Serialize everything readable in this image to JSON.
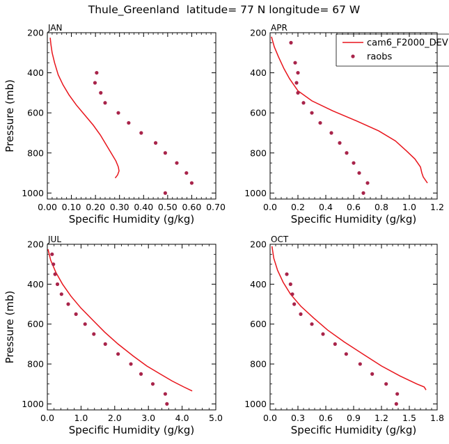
{
  "title": "Thule_Greenland  latitude= 77 N longitude= 67 W",
  "legend": {
    "model_label": "cam6_F2000_DEV",
    "obs_label": "raobs"
  },
  "colors": {
    "model": "#e8141b",
    "obs": "#a8244a",
    "axis": "#000000"
  },
  "chart_data": [
    {
      "type": "line",
      "panel": "JAN",
      "xlabel": "Specific Humidity (g/kg)",
      "ylabel": "Pressure (mb)",
      "xlim": [
        0,
        0.7
      ],
      "ylim": [
        200,
        1030
      ],
      "xticks": [
        0.0,
        0.1,
        0.2,
        0.3,
        0.4,
        0.5,
        0.6,
        0.7
      ],
      "xtick_labels": [
        "0.00",
        "0.10",
        "0.20",
        "0.30",
        "0.40",
        "0.50",
        "0.60",
        "0.70"
      ],
      "yticks": [
        200,
        400,
        600,
        800,
        1000
      ],
      "ytick_labels": [
        "200",
        "400",
        "600",
        "800",
        "1000"
      ],
      "series": [
        {
          "name": "cam6_F2000_DEV",
          "kind": "line",
          "x": [
            0.012,
            0.015,
            0.02,
            0.03,
            0.045,
            0.065,
            0.09,
            0.12,
            0.155,
            0.19,
            0.22,
            0.245,
            0.265,
            0.285,
            0.295,
            0.298,
            0.292,
            0.282
          ],
          "y": [
            225,
            260,
            300,
            350,
            410,
            460,
            510,
            560,
            610,
            660,
            710,
            760,
            800,
            840,
            870,
            890,
            910,
            925
          ]
        },
        {
          "name": "raobs",
          "kind": "scatter",
          "x": [
            0.205,
            0.198,
            0.222,
            0.24,
            0.295,
            0.338,
            0.39,
            0.45,
            0.49,
            0.538,
            0.578,
            0.6,
            0.49
          ],
          "y": [
            400,
            450,
            500,
            550,
            600,
            650,
            700,
            750,
            800,
            850,
            900,
            950,
            1000
          ]
        }
      ]
    },
    {
      "type": "line",
      "panel": "APR",
      "xlabel": "Specific Humidity (g/kg)",
      "ylabel": "",
      "xlim": [
        0,
        1.2
      ],
      "ylim": [
        200,
        1030
      ],
      "xticks": [
        0.0,
        0.2,
        0.4,
        0.6,
        0.8,
        1.0,
        1.2
      ],
      "xtick_labels": [
        "0.0",
        "0.2",
        "0.4",
        "0.6",
        "0.8",
        "1.0",
        "1.2"
      ],
      "yticks": [
        200,
        400,
        600,
        800,
        1000
      ],
      "ytick_labels": [
        "200",
        "400",
        "600",
        "800",
        "1000"
      ],
      "series": [
        {
          "name": "cam6_F2000_DEV",
          "kind": "line",
          "x": [
            0.01,
            0.03,
            0.06,
            0.1,
            0.14,
            0.2,
            0.3,
            0.45,
            0.62,
            0.78,
            0.9,
            0.98,
            1.04,
            1.08,
            1.09,
            1.1,
            1.13
          ],
          "y": [
            220,
            270,
            320,
            380,
            430,
            490,
            540,
            590,
            640,
            690,
            740,
            790,
            830,
            870,
            900,
            920,
            950
          ]
        },
        {
          "name": "raobs",
          "kind": "scatter",
          "x": [
            0.15,
            0.18,
            0.2,
            0.19,
            0.2,
            0.24,
            0.3,
            0.36,
            0.44,
            0.5,
            0.55,
            0.6,
            0.64,
            0.7,
            0.67
          ],
          "y": [
            250,
            350,
            400,
            450,
            500,
            550,
            600,
            650,
            700,
            750,
            800,
            850,
            900,
            950,
            1000
          ]
        }
      ]
    },
    {
      "type": "line",
      "panel": "JUL",
      "xlabel": "Specific Humidity (g/kg)",
      "ylabel": "Pressure (mb)",
      "xlim": [
        0,
        5.0
      ],
      "ylim": [
        200,
        1030
      ],
      "xticks": [
        0.0,
        1.0,
        2.0,
        3.0,
        4.0,
        5.0
      ],
      "xtick_labels": [
        "0.0",
        "1.0",
        "2.0",
        "3.0",
        "4.0",
        "5.0"
      ],
      "yticks": [
        200,
        400,
        600,
        800,
        1000
      ],
      "ytick_labels": [
        "200",
        "400",
        "600",
        "800",
        "1000"
      ],
      "series": [
        {
          "name": "cam6_F2000_DEV",
          "kind": "line",
          "x": [
            0.02,
            0.1,
            0.25,
            0.45,
            0.7,
            1.0,
            1.35,
            1.7,
            2.1,
            2.55,
            2.95,
            3.35,
            3.7,
            4.05,
            4.3
          ],
          "y": [
            225,
            280,
            340,
            400,
            460,
            520,
            580,
            640,
            700,
            760,
            810,
            850,
            885,
            915,
            935
          ]
        },
        {
          "name": "raobs",
          "kind": "scatter",
          "x": [
            0.14,
            0.18,
            0.23,
            0.3,
            0.42,
            0.62,
            0.85,
            1.12,
            1.38,
            1.72,
            2.1,
            2.48,
            2.78,
            3.13,
            3.5,
            3.55
          ],
          "y": [
            250,
            300,
            350,
            400,
            450,
            500,
            550,
            600,
            650,
            700,
            750,
            800,
            850,
            900,
            950,
            1000
          ]
        }
      ]
    },
    {
      "type": "line",
      "panel": "OCT",
      "xlabel": "Specific Humidity (g/kg)",
      "ylabel": "",
      "xlim": [
        0,
        1.8
      ],
      "ylim": [
        200,
        1030
      ],
      "xticks": [
        0.0,
        0.3,
        0.6,
        0.9,
        1.2,
        1.5,
        1.8
      ],
      "xtick_labels": [
        "0.0",
        "0.3",
        "0.6",
        "0.9",
        "1.2",
        "1.5",
        "1.8"
      ],
      "yticks": [
        200,
        400,
        600,
        800,
        1000
      ],
      "ytick_labels": [
        "200",
        "400",
        "600",
        "800",
        "1000"
      ],
      "series": [
        {
          "name": "cam6_F2000_DEV",
          "kind": "line",
          "x": [
            0.02,
            0.04,
            0.08,
            0.14,
            0.22,
            0.33,
            0.47,
            0.62,
            0.8,
            1.0,
            1.2,
            1.4,
            1.58,
            1.66,
            1.68
          ],
          "y": [
            210,
            270,
            330,
            390,
            450,
            510,
            570,
            630,
            690,
            750,
            810,
            860,
            900,
            915,
            930
          ]
        },
        {
          "name": "raobs",
          "kind": "scatter",
          "x": [
            0.18,
            0.22,
            0.24,
            0.26,
            0.33,
            0.45,
            0.57,
            0.7,
            0.82,
            0.97,
            1.1,
            1.25,
            1.37,
            1.36
          ],
          "y": [
            350,
            400,
            450,
            500,
            550,
            600,
            650,
            700,
            750,
            800,
            850,
            900,
            950,
            1000
          ]
        }
      ]
    }
  ]
}
